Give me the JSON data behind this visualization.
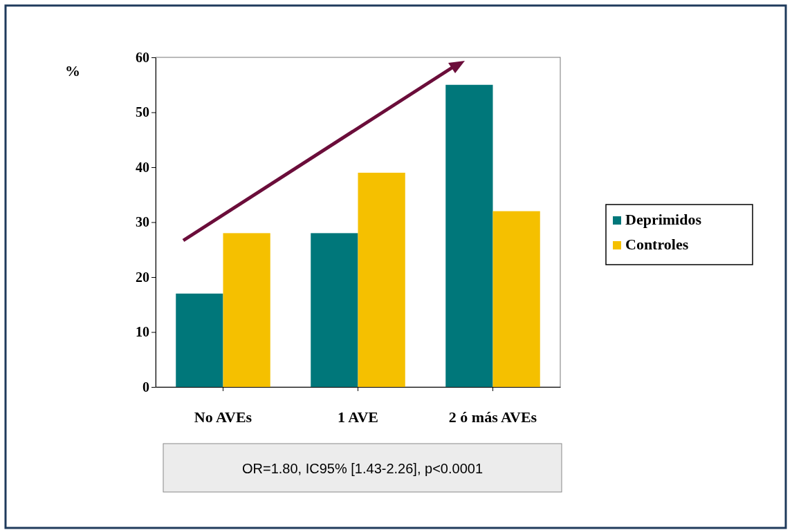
{
  "chart_data": {
    "type": "bar",
    "ylabel": "%",
    "categories": [
      "No AVEs",
      "1 AVE",
      "2 ó más AVEs"
    ],
    "series": [
      {
        "name": "Deprimidos",
        "color": "#00777a",
        "values": [
          17,
          28,
          55
        ]
      },
      {
        "name": "Controles",
        "color": "#f5c000",
        "values": [
          28,
          39,
          32
        ]
      }
    ],
    "ylim": [
      0,
      60
    ],
    "yticks": [
      0,
      10,
      20,
      30,
      40,
      50,
      60
    ],
    "grid": false,
    "legend": "right",
    "annotations": [
      "OR=1.80, IC95% [1.43-2.26], p<0.0001"
    ]
  }
}
